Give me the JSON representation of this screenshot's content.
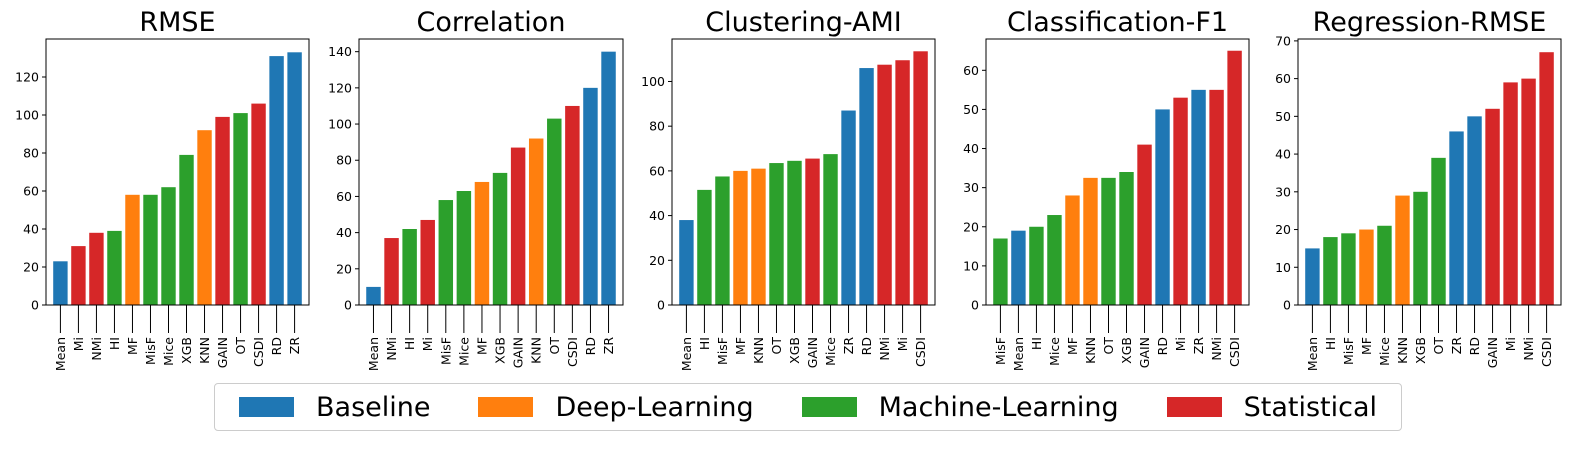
{
  "legend": [
    {
      "category": "Baseline",
      "color": "#1f77b4"
    },
    {
      "category": "Deep-Learning",
      "color": "#ff7f0e"
    },
    {
      "category": "Machine-Learning",
      "color": "#2ca02c"
    },
    {
      "category": "Statistical",
      "color": "#d62728"
    }
  ],
  "chart_data": [
    {
      "type": "bar",
      "title": "RMSE",
      "xlabel": "",
      "ylabel": "",
      "ylim": [
        0,
        140
      ],
      "yticks": [
        0,
        20,
        40,
        60,
        80,
        100,
        120
      ],
      "categories": [
        "Mean",
        "Mi",
        "NMi",
        "HI",
        "MF",
        "MisF",
        "Mice",
        "XGB",
        "KNN",
        "GAIN",
        "OT",
        "CSDI",
        "RD",
        "ZR"
      ],
      "values": [
        23,
        31,
        38,
        39,
        58,
        58,
        62,
        79,
        92,
        99,
        101,
        106,
        131,
        133
      ],
      "groups": [
        "Baseline",
        "Statistical",
        "Statistical",
        "Machine-Learning",
        "Deep-Learning",
        "Machine-Learning",
        "Machine-Learning",
        "Machine-Learning",
        "Deep-Learning",
        "Statistical",
        "Machine-Learning",
        "Statistical",
        "Baseline",
        "Baseline"
      ]
    },
    {
      "type": "bar",
      "title": "Correlation",
      "xlabel": "",
      "ylabel": "",
      "ylim": [
        0,
        147
      ],
      "yticks": [
        0,
        20,
        40,
        60,
        80,
        100,
        120,
        140
      ],
      "categories": [
        "Mean",
        "NMi",
        "HI",
        "Mi",
        "MisF",
        "Mice",
        "MF",
        "XGB",
        "GAIN",
        "KNN",
        "OT",
        "CSDI",
        "RD",
        "ZR"
      ],
      "values": [
        10,
        37,
        42,
        47,
        58,
        63,
        68,
        73,
        87,
        92,
        103,
        110,
        120,
        140
      ],
      "groups": [
        "Baseline",
        "Statistical",
        "Machine-Learning",
        "Statistical",
        "Machine-Learning",
        "Machine-Learning",
        "Deep-Learning",
        "Machine-Learning",
        "Statistical",
        "Deep-Learning",
        "Machine-Learning",
        "Statistical",
        "Baseline",
        "Baseline"
      ]
    },
    {
      "type": "bar",
      "title": "Clustering-AMI",
      "xlabel": "",
      "ylabel": "",
      "ylim": [
        0,
        119
      ],
      "yticks": [
        0,
        20,
        40,
        60,
        80,
        100
      ],
      "categories": [
        "Mean",
        "HI",
        "MisF",
        "MF",
        "KNN",
        "OT",
        "XGB",
        "GAIN",
        "Mice",
        "ZR",
        "RD",
        "NMi",
        "Mi",
        "CSDI"
      ],
      "values": [
        38,
        51.5,
        57.5,
        60,
        61,
        63.5,
        64.5,
        65.5,
        67.5,
        87,
        106,
        107.5,
        109.5,
        113.5
      ],
      "groups": [
        "Baseline",
        "Machine-Learning",
        "Machine-Learning",
        "Deep-Learning",
        "Deep-Learning",
        "Machine-Learning",
        "Machine-Learning",
        "Statistical",
        "Machine-Learning",
        "Baseline",
        "Baseline",
        "Statistical",
        "Statistical",
        "Statistical"
      ]
    },
    {
      "type": "bar",
      "title": "Classification-F1",
      "xlabel": "",
      "ylabel": "",
      "ylim": [
        0,
        68
      ],
      "yticks": [
        0,
        10,
        20,
        30,
        40,
        50,
        60
      ],
      "categories": [
        "MisF",
        "Mean",
        "HI",
        "Mice",
        "MF",
        "KNN",
        "OT",
        "XGB",
        "GAIN",
        "RD",
        "Mi",
        "ZR",
        "NMi",
        "CSDI"
      ],
      "values": [
        17,
        19,
        20,
        23,
        28,
        32.5,
        32.5,
        34,
        41,
        50,
        53,
        55,
        55,
        65
      ],
      "groups": [
        "Machine-Learning",
        "Baseline",
        "Machine-Learning",
        "Machine-Learning",
        "Deep-Learning",
        "Deep-Learning",
        "Machine-Learning",
        "Machine-Learning",
        "Statistical",
        "Baseline",
        "Statistical",
        "Baseline",
        "Statistical",
        "Statistical"
      ]
    },
    {
      "type": "bar",
      "title": "Regression-RMSE",
      "xlabel": "",
      "ylabel": "",
      "ylim": [
        0,
        70.5
      ],
      "yticks": [
        0,
        10,
        20,
        30,
        40,
        50,
        60,
        70
      ],
      "categories": [
        "Mean",
        "HI",
        "MisF",
        "MF",
        "Mice",
        "KNN",
        "XGB",
        "OT",
        "ZR",
        "RD",
        "GAIN",
        "Mi",
        "NMi",
        "CSDI"
      ],
      "values": [
        15,
        18,
        19,
        20,
        21,
        29,
        30,
        39,
        46,
        50,
        52,
        59,
        60,
        67
      ],
      "groups": [
        "Baseline",
        "Machine-Learning",
        "Machine-Learning",
        "Deep-Learning",
        "Machine-Learning",
        "Deep-Learning",
        "Machine-Learning",
        "Machine-Learning",
        "Baseline",
        "Baseline",
        "Statistical",
        "Statistical",
        "Statistical",
        "Statistical"
      ]
    }
  ]
}
